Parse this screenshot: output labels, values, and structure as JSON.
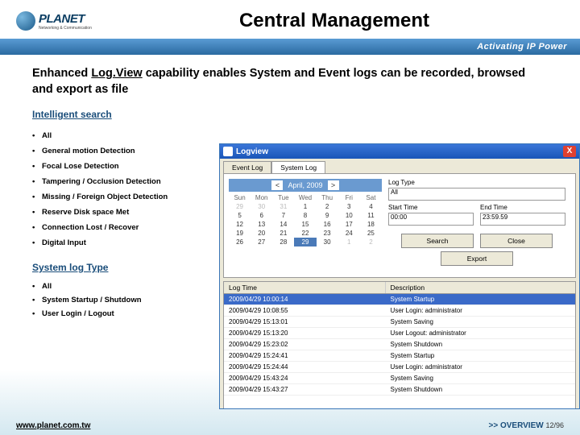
{
  "header": {
    "logo_text": "PLANET",
    "logo_sub": "Networking & Communication",
    "title": "Central Management",
    "tagline": "Activating IP Power"
  },
  "subtitle_parts": {
    "p1": "Enhanced ",
    "p2": "Log.View",
    "p3": " capability enables System and Event logs can be recorded, browsed and export as file"
  },
  "intelligent": {
    "heading": "Intelligent search",
    "items": [
      "All",
      "General motion Detection",
      "Focal Lose Detection",
      "Tampering / Occlusion Detection",
      "Missing / Foreign Object Detection",
      "Reserve Disk space Met",
      "Connection Lost / Recover",
      "Digital Input"
    ]
  },
  "syslog": {
    "heading": "System log Type",
    "items": [
      "All",
      "System Startup / Shutdown",
      "User Login / Logout"
    ]
  },
  "window": {
    "title": "Logview",
    "close": "X",
    "tabs": [
      "Event Log",
      "System Log"
    ],
    "calendar": {
      "month": "April, 2009",
      "prev": "<",
      "next": ">",
      "dayheads": [
        "Sun",
        "Mon",
        "Tue",
        "Wed",
        "Thu",
        "Fri",
        "Sat"
      ],
      "leading_dim": [
        "29",
        "30",
        "31"
      ],
      "days": [
        "1",
        "2",
        "3",
        "4",
        "5",
        "6",
        "7",
        "8",
        "9",
        "10",
        "11",
        "12",
        "13",
        "14",
        "15",
        "16",
        "17",
        "18",
        "19",
        "20",
        "21",
        "22",
        "23",
        "24",
        "25",
        "26",
        "27",
        "28",
        "29",
        "30"
      ],
      "trailing_dim": [
        "1",
        "2"
      ],
      "selected": "29"
    },
    "filters": {
      "logtype_label": "Log Type",
      "logtype_value": "All",
      "start_label": "Start Time",
      "start_value": "00:00",
      "end_label": "End Time",
      "end_value": "23:59.59",
      "search": "Search",
      "close": "Close",
      "export": "Export"
    },
    "table": {
      "col1": "Log Time",
      "col2": "Description",
      "rows": [
        {
          "t": "2009/04/29  10:00:14",
          "d": "System Startup",
          "sel": true
        },
        {
          "t": "2009/04/29  10:08:55",
          "d": "User Login: administrator"
        },
        {
          "t": "2009/04/29  15:13:01",
          "d": "System Saving"
        },
        {
          "t": "2009/04/29  15:13:20",
          "d": "User Logout: administrator"
        },
        {
          "t": "2009/04/29  15:23:02",
          "d": "System Shutdown"
        },
        {
          "t": "2009/04/29  15:24:41",
          "d": "System Startup"
        },
        {
          "t": "2009/04/29  15:24:44",
          "d": "User Login: administrator"
        },
        {
          "t": "2009/04/29  15:43:24",
          "d": "System Saving"
        },
        {
          "t": "2009/04/29  15:43:27",
          "d": "System Shutdown"
        }
      ]
    }
  },
  "footer": {
    "url": "www.planet.com.tw",
    "overview": ">> OVERVIEW",
    "page": "12/96"
  }
}
